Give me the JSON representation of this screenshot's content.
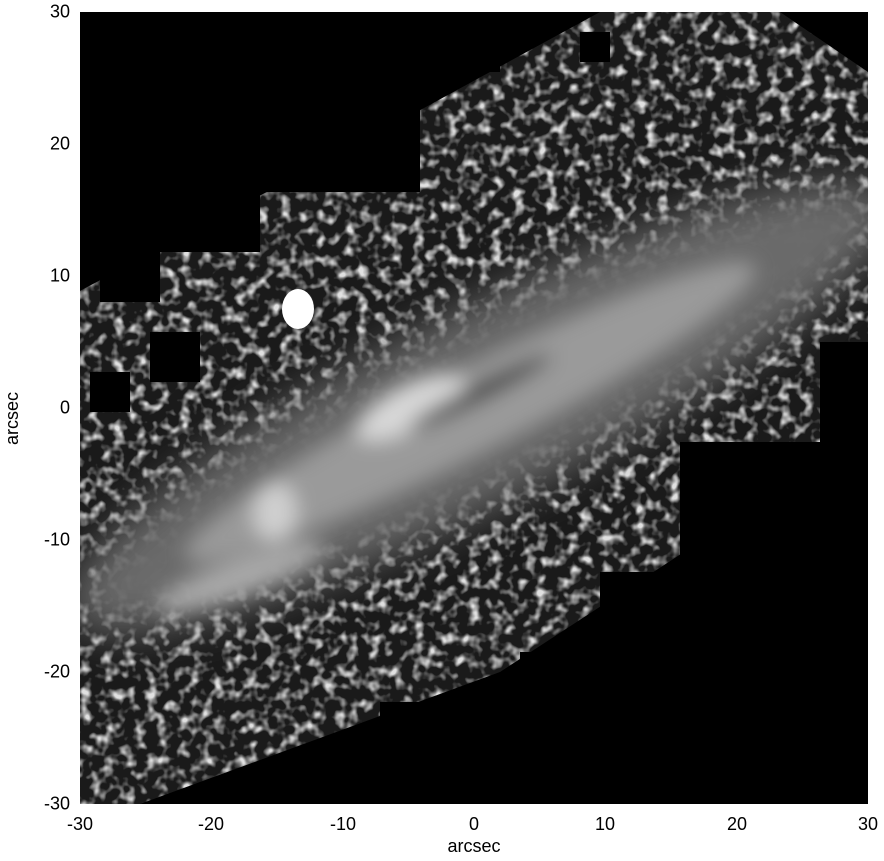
{
  "figure": {
    "title": "",
    "xlabel": "arcsec",
    "ylabel": "arcsec",
    "xticks": [
      "-30",
      "-20",
      "-10",
      "0",
      "10",
      "20",
      "30"
    ],
    "yticks": [
      "30",
      "20",
      "10",
      "0",
      "-10",
      "-20",
      "-30"
    ],
    "xlim": [
      -30,
      30
    ],
    "ylim": [
      -30,
      30
    ],
    "colors": {
      "background": "#000000",
      "frame": "#000000",
      "axis_text": "#000000"
    }
  }
}
